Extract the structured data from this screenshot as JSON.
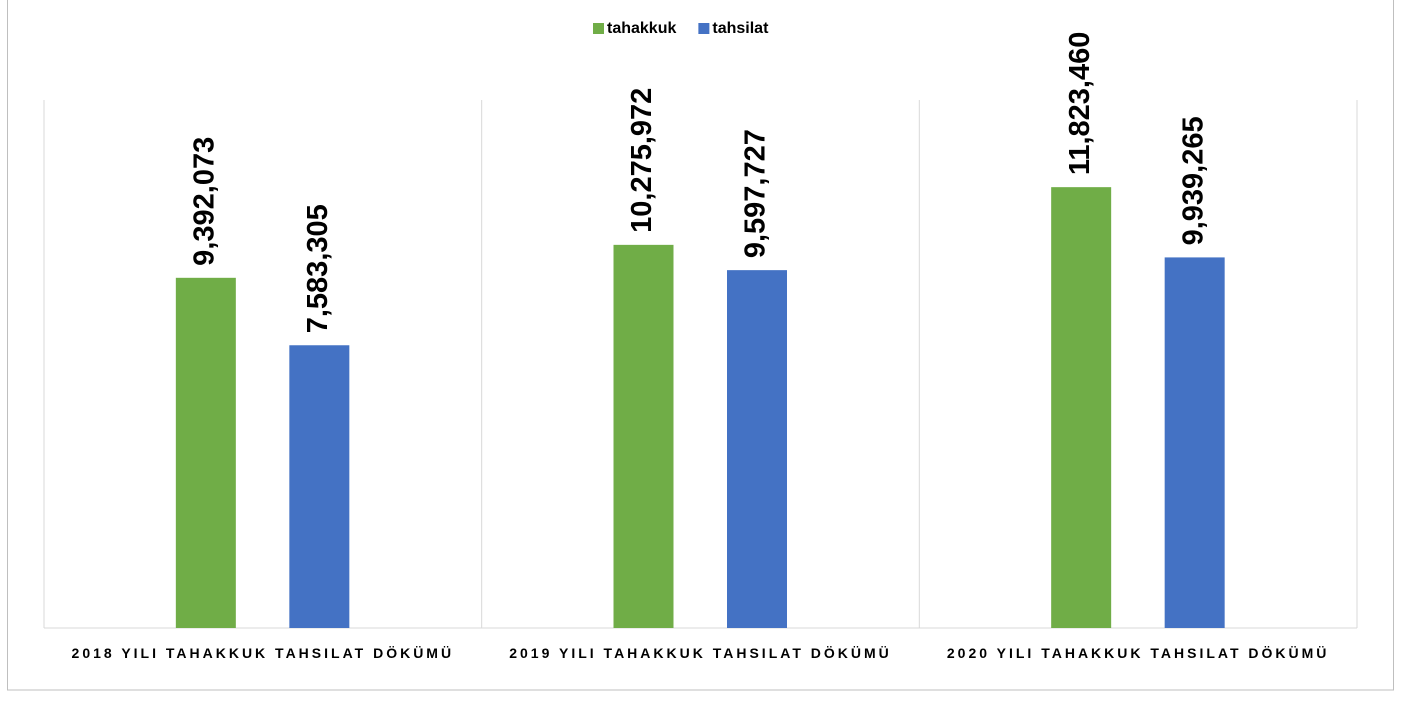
{
  "chart_data": {
    "type": "bar",
    "categories": [
      "2018 YILI TAHAKKUK TAHSILAT DÖKÜMÜ",
      "2019 YILI TAHAKKUK TAHSILAT DÖKÜMÜ",
      "2020 YILI TAHAKKUK TAHSILAT DÖKÜMÜ"
    ],
    "series": [
      {
        "name": "tahakkuk",
        "color": "#70ad47",
        "values": [
          9392073,
          10275972,
          11823460
        ],
        "value_labels": [
          "9,392,073",
          "10,275,972",
          "11,823,460"
        ]
      },
      {
        "name": "tahsilat",
        "color": "#4472c4",
        "values": [
          7583305,
          9597727,
          9939265
        ],
        "value_labels": [
          "7,583,305",
          "9,597,727",
          "9,939,265"
        ]
      }
    ],
    "ylim": [
      0,
      14000000
    ],
    "legend": "top"
  }
}
